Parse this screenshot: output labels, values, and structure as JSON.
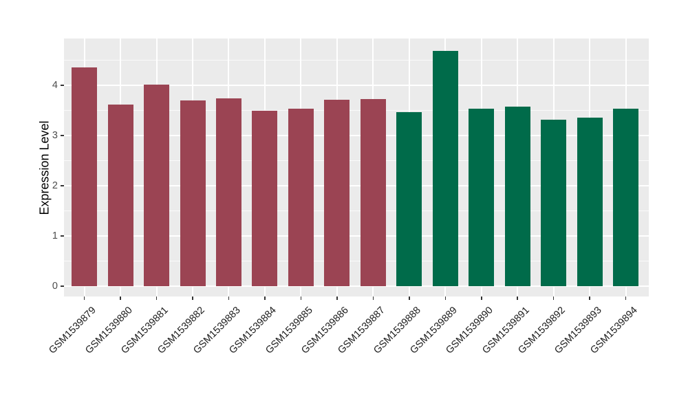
{
  "figure": {
    "colors": {
      "panel_bg": "#EBEBEB",
      "grid": "#FFFFFF",
      "tick_mark": "#333333",
      "y_axis_text": "#4D4D4D",
      "x_axis_text": "#1A1A1A",
      "title_text": "#000000",
      "bar_red": "#9B4453",
      "bar_green": "#006B4A"
    }
  },
  "chart_data": {
    "type": "bar",
    "title": "",
    "xlabel": "",
    "ylabel": "Expression Level",
    "categories": [
      "GSM1539879",
      "GSM1539880",
      "GSM1539881",
      "GSM1539882",
      "GSM1539883",
      "GSM1539884",
      "GSM1539885",
      "GSM1539886",
      "GSM1539887",
      "GSM1539888",
      "GSM1539889",
      "GSM1539890",
      "GSM1539891",
      "GSM1539892",
      "GSM1539893",
      "GSM1539894"
    ],
    "values": [
      4.35,
      3.61,
      4.02,
      3.7,
      3.74,
      3.5,
      3.53,
      3.71,
      3.72,
      3.47,
      4.68,
      3.53,
      3.57,
      3.31,
      3.36,
      3.54
    ],
    "groups": [
      "group1",
      "group1",
      "group1",
      "group1",
      "group1",
      "group1",
      "group1",
      "group1",
      "group1",
      "group2",
      "group2",
      "group2",
      "group2",
      "group2",
      "group2",
      "group2"
    ],
    "group_colors": {
      "group1": "#9B4453",
      "group2": "#006B4A"
    },
    "yticks": [
      "0",
      "1",
      "2",
      "3",
      "4"
    ],
    "ytick_values": [
      0,
      1,
      2,
      3,
      4
    ],
    "minor_gridline_values": [
      0.5,
      1.5,
      2.5,
      3.5,
      4.5
    ],
    "ylim": [
      0,
      4.93
    ],
    "grid": true,
    "legend": "none",
    "x_label_angle_deg": 45
  }
}
